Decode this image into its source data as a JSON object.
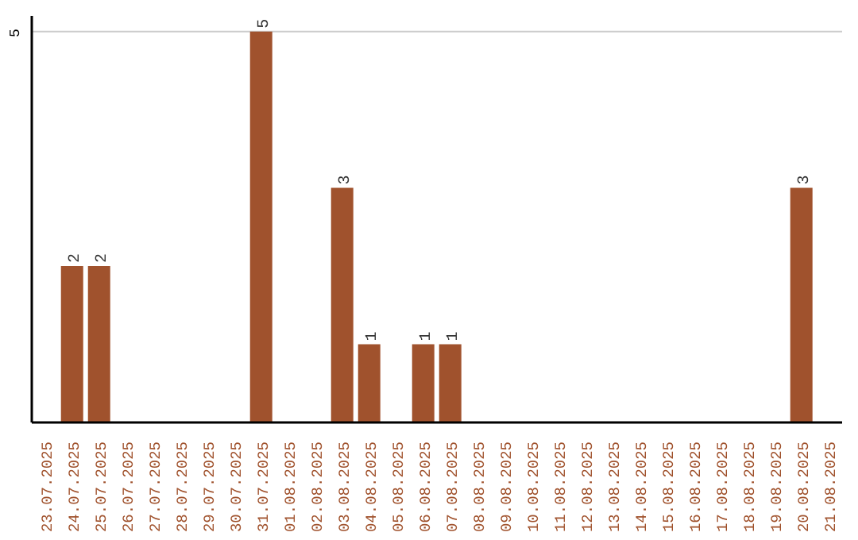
{
  "chart_data": {
    "type": "bar",
    "categories": [
      "23.07.2025",
      "24.07.2025",
      "25.07.2025",
      "26.07.2025",
      "27.07.2025",
      "28.07.2025",
      "29.07.2025",
      "30.07.2025",
      "31.07.2025",
      "01.08.2025",
      "02.08.2025",
      "03.08.2025",
      "04.08.2025",
      "05.08.2025",
      "06.08.2025",
      "07.08.2025",
      "08.08.2025",
      "09.08.2025",
      "10.08.2025",
      "11.08.2025",
      "12.08.2025",
      "13.08.2025",
      "14.08.2025",
      "15.08.2025",
      "16.08.2025",
      "17.08.2025",
      "18.08.2025",
      "19.08.2025",
      "20.08.2025",
      "21.08.2025"
    ],
    "values": [
      0,
      2,
      2,
      0,
      0,
      0,
      0,
      0,
      5,
      0,
      0,
      3,
      1,
      0,
      1,
      1,
      0,
      0,
      0,
      0,
      0,
      0,
      0,
      0,
      0,
      0,
      0,
      0,
      3,
      0
    ],
    "value_labels": [
      null,
      "2",
      "2",
      null,
      null,
      null,
      null,
      null,
      "5",
      null,
      null,
      "3",
      "1",
      null,
      "1",
      "1",
      null,
      null,
      null,
      null,
      null,
      null,
      null,
      null,
      null,
      null,
      null,
      null,
      "3",
      null
    ],
    "color": "#a0522d",
    "ylim": [
      0,
      5.2
    ],
    "yticks": [
      5
    ],
    "grid": "y"
  }
}
